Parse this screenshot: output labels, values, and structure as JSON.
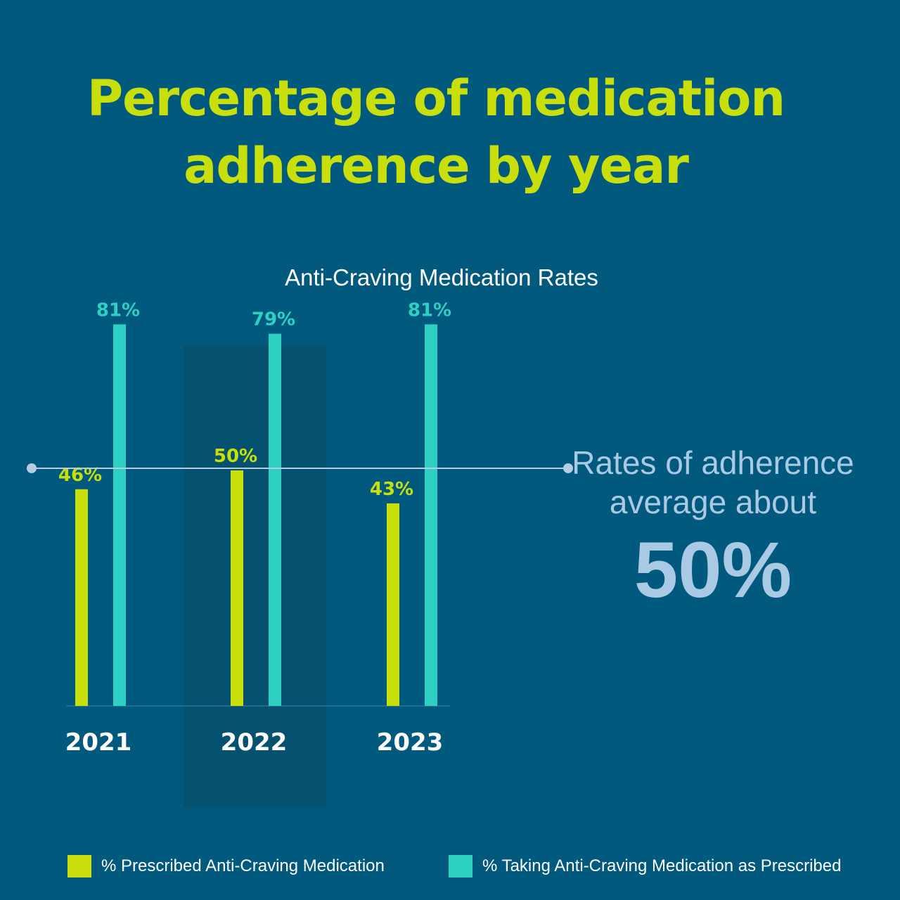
{
  "title_lines": [
    "Percentage of medication",
    "adherence by year"
  ],
  "chart_data": {
    "type": "bar",
    "title": "Anti-Craving Medication Rates",
    "categories": [
      "2021",
      "2022",
      "2023"
    ],
    "highlighted_category": "2022",
    "series": [
      {
        "name": "% Prescribed Anti-Craving Medication",
        "values": [
          46,
          50,
          43
        ],
        "labels": [
          "46%",
          "50%",
          "43%"
        ],
        "color": "#c9df0c"
      },
      {
        "name": "% Taking Anti-Craving Medication as Prescribed",
        "values": [
          81,
          79,
          81
        ],
        "labels": [
          "81%",
          "79%",
          "81%"
        ],
        "color": "#2fd0c4"
      }
    ],
    "reference_line": {
      "value": 50
    },
    "ylim": [
      0,
      100
    ],
    "legend_position": "bottom"
  },
  "callout": {
    "line1": "Rates of adherence",
    "line2": "average about",
    "value": "50%"
  },
  "colors": {
    "background": "#02597e",
    "title": "#c9df0c",
    "highlight_band": "#045170",
    "reference_line": "#b5cde0",
    "callout": "#a9c9e4"
  }
}
